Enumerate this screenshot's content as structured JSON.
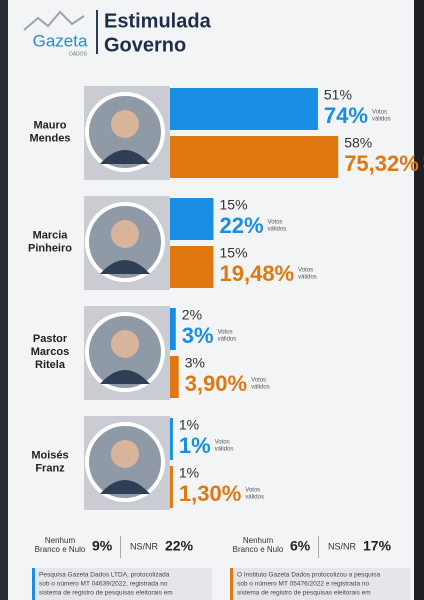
{
  "header": {
    "logo": "Gazeta",
    "logo_sub": "DADOS",
    "title": "Estimulada",
    "subtitle": "Governo"
  },
  "chart_data": {
    "type": "bar",
    "candidates": [
      [
        "Mauro",
        "Mendes"
      ],
      [
        "Marcia",
        "Pinheiro"
      ],
      [
        "Pastor",
        "Marcos",
        "Ritela"
      ],
      [
        "Moisés",
        "Franz"
      ]
    ],
    "valid_label": [
      "Votos",
      "válidos"
    ],
    "series": [
      {
        "color": "#1a8ee2",
        "values": [
          51,
          15,
          2,
          1
        ],
        "value_labels": [
          "51%",
          "15%",
          "2%",
          "1%"
        ],
        "valid_labels": [
          "74%",
          "22%",
          "3%",
          "1%"
        ]
      },
      {
        "color": "#e07812",
        "values": [
          58,
          15,
          3,
          1
        ],
        "value_labels": [
          "58%",
          "15%",
          "3%",
          "1%"
        ],
        "valid_labels": [
          "75,32%",
          "19,48%",
          "3,90%",
          "1,30%"
        ]
      }
    ]
  },
  "footer": [
    {
      "blank_label": [
        "Nenhum",
        "Branco e Nulo"
      ],
      "blank_value": "9%",
      "nsnr_label": "NS/NR",
      "nsnr_value": "22%",
      "note": [
        "Pesquisa Gazeta Dados LTDA, protocolizada",
        "sob o número MT 04639/2022, registrada no",
        "sistema de registro de pesquisas eleitorais em"
      ]
    },
    {
      "blank_label": [
        "Nenhum",
        "Branco e Nulo"
      ],
      "blank_value": "6%",
      "nsnr_label": "NS/NR",
      "nsnr_value": "17%",
      "note": [
        "O Instituto Gazeta Dados protocolizou a pesquisa",
        "sob o número MT 05476/2022 e registrada no",
        "sistema de registro de pesquisas eleitorais em"
      ]
    }
  ]
}
